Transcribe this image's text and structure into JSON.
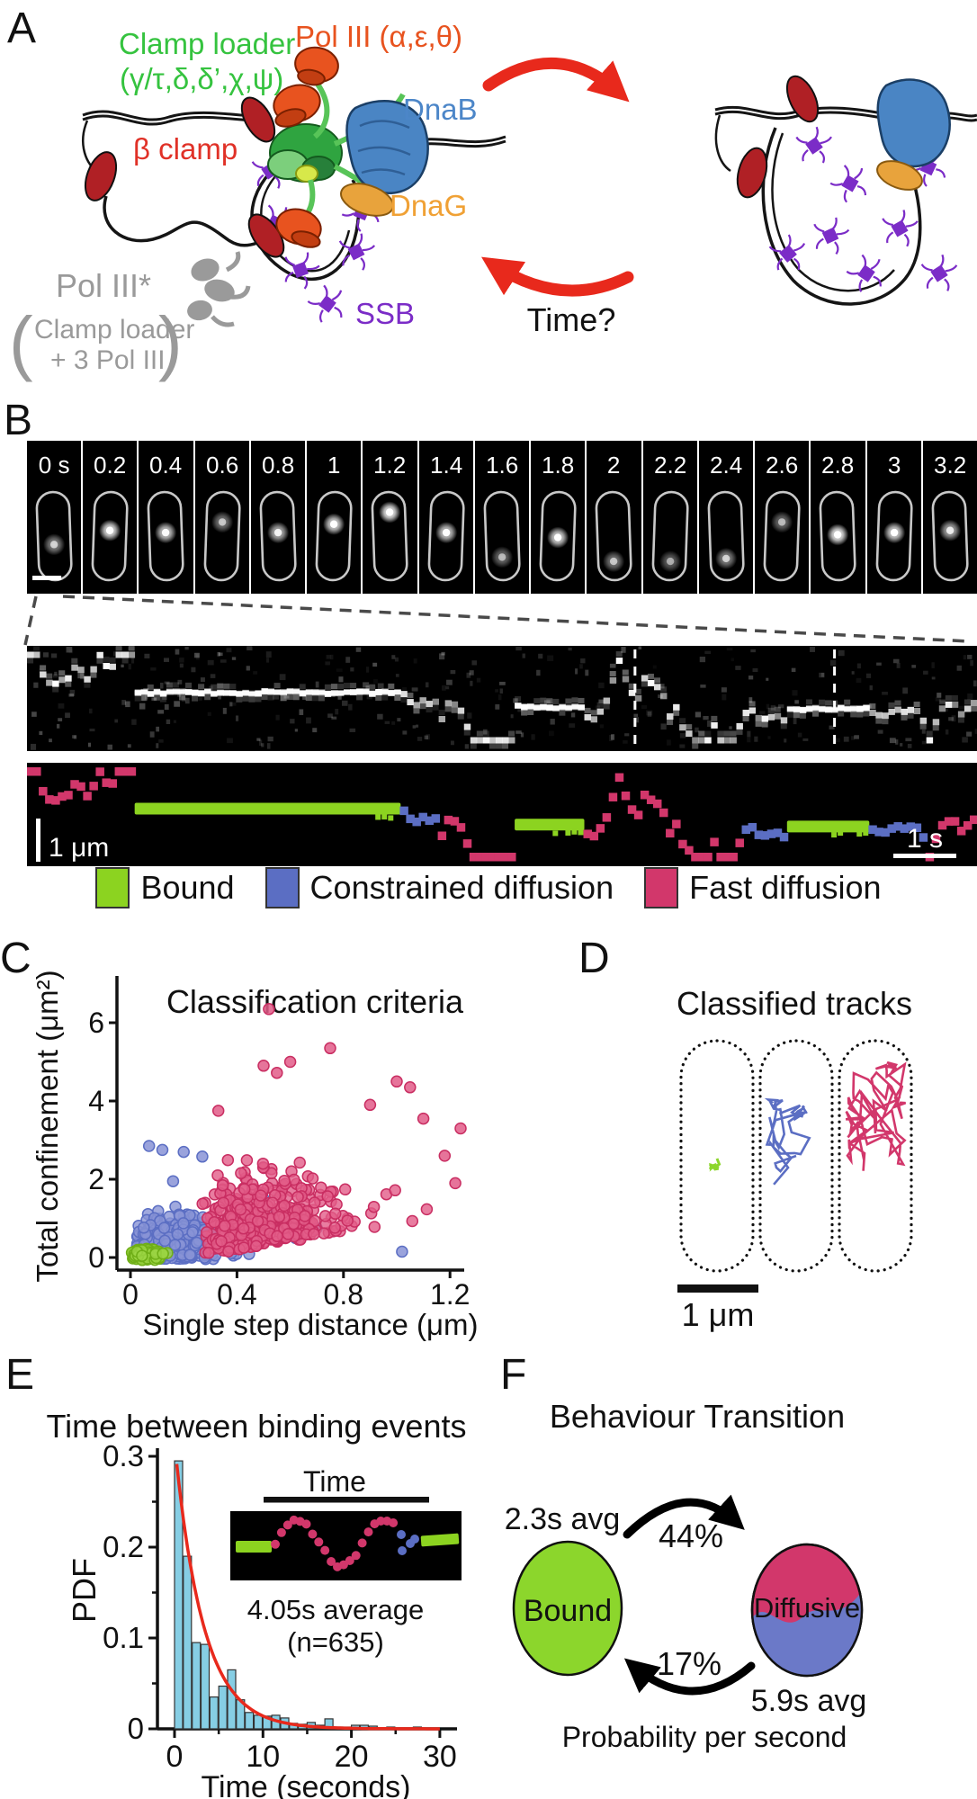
{
  "figure": {
    "panels": {
      "a": "A",
      "b": "B",
      "c": "C",
      "d": "D",
      "e": "E",
      "f": "F"
    }
  },
  "panelA": {
    "labels": {
      "clamp_loader_1": "Clamp loader",
      "clamp_loader_2": "(γ/τ,δ,δ’,χ,ψ)",
      "pol_iii": "Pol III (α,ε,θ)",
      "dnab": "DnaB",
      "beta_clamp": "β clamp",
      "dnag": "DnaG",
      "ssb": "SSB",
      "pol_iii_star": "Pol III*",
      "paren_open": "(",
      "pol_iii_star_line1": "Clamp loader",
      "pol_iii_star_line2": "+ 3 Pol III",
      "paren_close": ")",
      "time_question": "Time?"
    },
    "colors": {
      "clamp_loader": "#35C33F",
      "pol_iii": "#E8531F",
      "dnab": "#4C86C8",
      "beta_clamp": "#E03127",
      "dnag": "#F0A135",
      "ssb": "#7B2CC7",
      "pol_iii_star": "#9A9A9A",
      "cycle_arrow": "#E8291C"
    }
  },
  "panelB": {
    "frame_labels": [
      "0 s",
      "0.2",
      "0.4",
      "0.6",
      "0.8",
      "1",
      "1.2",
      "1.4",
      "1.6",
      "1.8",
      "2",
      "2.2",
      "2.4",
      "2.6",
      "2.8",
      "3",
      "3.2"
    ],
    "spots": [
      {
        "y": 0.62,
        "b": 0.55
      },
      {
        "y": 0.42,
        "b": 0.95
      },
      {
        "y": 0.45,
        "b": 0.85
      },
      {
        "y": 0.3,
        "b": 0.5
      },
      {
        "y": 0.45,
        "b": 0.75
      },
      {
        "y": 0.33,
        "b": 0.9
      },
      {
        "y": 0.16,
        "b": 1.0
      },
      {
        "y": 0.45,
        "b": 0.85
      },
      {
        "y": 0.8,
        "b": 0.45
      },
      {
        "y": 0.52,
        "b": 0.9
      },
      {
        "y": 0.86,
        "b": 0.5
      },
      {
        "y": 0.86,
        "b": 0.4
      },
      {
        "y": 0.82,
        "b": 0.55
      },
      {
        "y": 0.3,
        "b": 0.45
      },
      {
        "y": 0.48,
        "b": 1.0
      },
      {
        "y": 0.45,
        "b": 0.9
      },
      {
        "y": 0.42,
        "b": 0.7
      }
    ],
    "scale_space": "1 μm",
    "scale_time": "1 s",
    "track_segments": [
      {
        "state": "fast",
        "frac": 0.11
      },
      {
        "state": "bound",
        "frac": 0.28
      },
      {
        "state": "constrained",
        "frac": 0.04
      },
      {
        "state": "fast",
        "frac": 0.08
      },
      {
        "state": "bound",
        "frac": 0.075
      },
      {
        "state": "fast",
        "frac": 0.165
      },
      {
        "state": "constrained",
        "frac": 0.045
      },
      {
        "state": "bound",
        "frac": 0.085
      },
      {
        "state": "constrained",
        "frac": 0.06
      },
      {
        "state": "fast",
        "frac": 0.06
      }
    ],
    "kymo_markers": [
      0.64,
      0.85
    ],
    "state_colors": {
      "bound": "#8CD320",
      "constrained": "#5B6EC3",
      "fast": "#D2376B"
    },
    "legend": [
      {
        "label": "Bound",
        "color": "#8CD320"
      },
      {
        "label": "Constrained diffusion",
        "color": "#5B6EC3"
      },
      {
        "label": "Fast diffusion",
        "color": "#D2376B"
      }
    ]
  },
  "chart_data": [
    {
      "type": "scatter",
      "panel": "C",
      "title": "Classification criteria",
      "xlabel": "Single step distance (μm)",
      "ylabel": "Total confinement (μm²)",
      "xlim": [
        0,
        1.3
      ],
      "ylim": [
        -0.15,
        6.8
      ],
      "xticks": [
        0,
        0.4,
        0.8,
        1.2
      ],
      "yticks": [
        0,
        2,
        4,
        6
      ],
      "grid": false,
      "legend_position": "none",
      "series": [
        {
          "name": "Constrained diffusion",
          "fill": "#8893D6",
          "stroke": "#5B6EC3",
          "model": "blob",
          "n": 380,
          "cx": 0.17,
          "sx": 0.095,
          "cy": 0.32,
          "sy": 0.38,
          "clip": [
            0.02,
            0.64,
            -0.04,
            2.15
          ],
          "outliers": [
            [
              0.07,
              2.85
            ],
            [
              0.12,
              2.75
            ],
            [
              0.2,
              2.7
            ],
            [
              0.27,
              2.58
            ],
            [
              0.16,
              1.95
            ],
            [
              0.5,
              1.5
            ],
            [
              0.55,
              1.15
            ],
            [
              0.62,
              0.5
            ],
            [
              1.02,
              0.15
            ],
            [
              0.7,
              0.75
            ]
          ]
        },
        {
          "name": "Fast diffusion",
          "fill": "#E25C88",
          "stroke": "#C92E62",
          "model": "corr",
          "n": 430,
          "x0": 0.26,
          "xg": 0.21,
          "xu": 0.12,
          "y0": -0.25,
          "yg": 0.85,
          "yx": 1.1,
          "clip": [
            0.13,
            1.24,
            -0.04,
            5.35
          ],
          "outliers": [
            [
              0.52,
              6.35
            ],
            [
              0.75,
              5.35
            ],
            [
              0.6,
              5.0
            ],
            [
              0.5,
              4.9
            ],
            [
              0.55,
              4.72
            ],
            [
              1.0,
              4.5
            ],
            [
              1.05,
              4.35
            ],
            [
              0.33,
              3.75
            ],
            [
              1.24,
              3.3
            ],
            [
              1.18,
              2.6
            ],
            [
              1.22,
              1.9
            ],
            [
              0.9,
              3.9
            ],
            [
              1.1,
              3.55
            ]
          ]
        },
        {
          "name": "Bound",
          "fill": "#9BD544",
          "stroke": "#6FAE17",
          "model": "blob",
          "n": 160,
          "cx": 0.055,
          "sx": 0.032,
          "cy": 0.07,
          "sy": 0.075,
          "clip": [
            0.002,
            0.2,
            -0.07,
            0.5
          ],
          "outliers": []
        }
      ]
    },
    {
      "type": "histogram",
      "panel": "E",
      "title": "Time between binding events",
      "xlabel": "Time (seconds)",
      "ylabel": "PDF",
      "xlim": [
        0,
        30
      ],
      "ylim": [
        0,
        0.3
      ],
      "xticks": [
        0,
        10,
        20,
        30
      ],
      "yticks": [
        0,
        0.1,
        0.2,
        0.3
      ],
      "bin_width": 1,
      "bar_fill": "#86CEE4",
      "bar_stroke": "#333333",
      "values": [
        0.295,
        0.19,
        0.095,
        0.093,
        0.035,
        0.047,
        0.065,
        0.032,
        0.018,
        0.015,
        0.014,
        0.015,
        0.012,
        0.006,
        0.005,
        0.007,
        0.004,
        0.011,
        0.002,
        0.002,
        0.004,
        0.004,
        0.003,
        0.001,
        0.002,
        0.001,
        0.001,
        0.002,
        0.001,
        0.001
      ],
      "fit": {
        "type": "exponential",
        "color": "#E8291C",
        "amplitude": 0.315,
        "rate": 0.31,
        "mean_label": "4.05s"
      }
    }
  ],
  "panelD": {
    "title": "Classified tracks",
    "scale_label": "1 μm",
    "tracks": [
      {
        "name": "bound",
        "color": "#8CD62C"
      },
      {
        "name": "constrained diffusion",
        "color": "#5B6EC3"
      },
      {
        "name": "fast diffusion",
        "color": "#D2376B"
      }
    ]
  },
  "panelE": {
    "inset_label": "Time",
    "annotation_line1": "4.05s average",
    "annotation_line2": "(n=635)"
  },
  "panelF": {
    "title": "Behaviour Transition",
    "bound_label": "Bound",
    "diffusive_label": "Diffusive",
    "bound_avg": "2.3s avg",
    "diffusive_avg": "5.9s avg",
    "rate_to_diffusive": "44%",
    "rate_to_bound": "17%",
    "footer": "Probability per second",
    "bound_color": "#8CD62C",
    "diffusive_top_color": "#D2376B",
    "diffusive_bottom_color": "#6B79C8"
  }
}
